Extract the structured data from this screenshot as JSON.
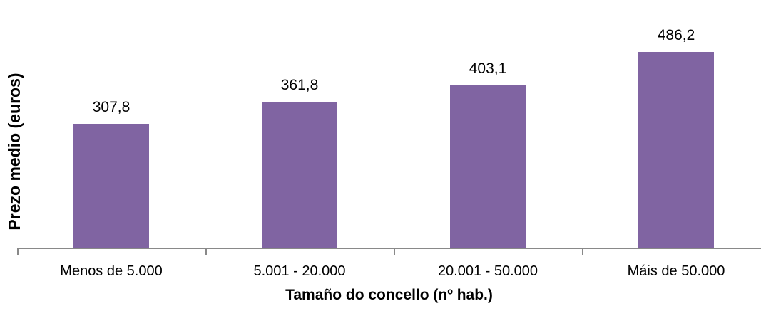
{
  "chart_data": {
    "type": "bar",
    "categories": [
      "Menos de 5.000",
      "5.001 - 20.000",
      "20.001 - 50.000",
      "Máis de 50.000"
    ],
    "values": [
      307.8,
      361.8,
      403.1,
      486.2
    ],
    "value_labels": [
      "307,8",
      "361,8",
      "403,1",
      "486,2"
    ],
    "title": "",
    "xlabel": "Tamaño do concello (nº hab.)",
    "ylabel": "Prezo medio (euros)",
    "ylim": [
      0,
      600
    ],
    "grid": false,
    "legend": false,
    "data_labels": true,
    "bar_color": "#8064A2",
    "axis_color": "#898989",
    "text_color": "#000000",
    "background_color": "#FFFFFF"
  }
}
